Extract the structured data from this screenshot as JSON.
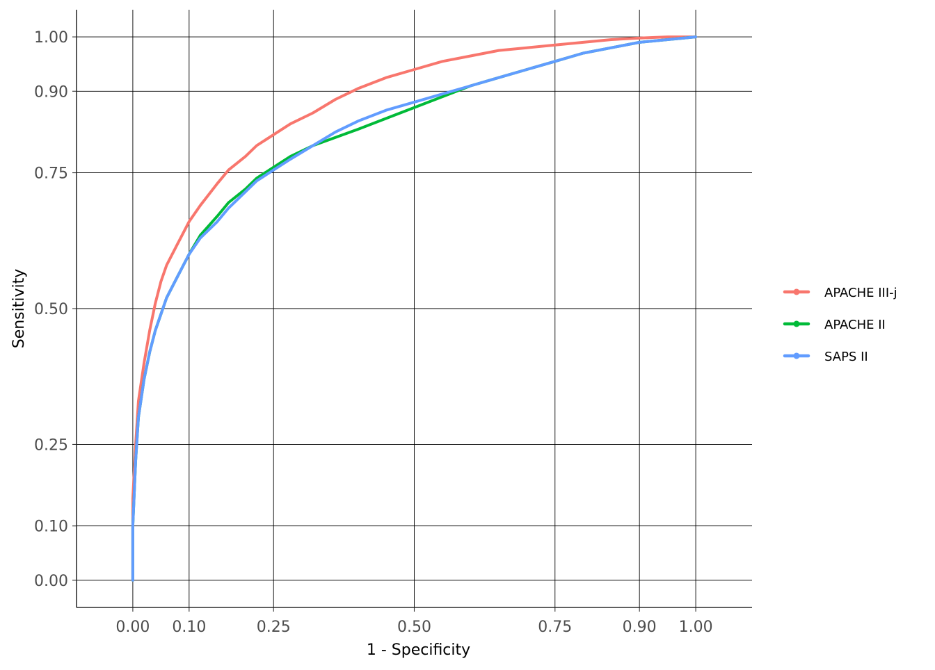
{
  "chart_data": {
    "type": "line",
    "title": "",
    "xlabel": "1 - Specificity",
    "ylabel": "Sensitivity",
    "xlim": [
      -0.1,
      1.1
    ],
    "ylim": [
      -0.05,
      1.05
    ],
    "xticks": [
      0.0,
      0.1,
      0.25,
      0.5,
      0.75,
      0.9,
      1.0
    ],
    "xtick_labels": [
      "0.00",
      "0.10",
      "0.25",
      "0.50",
      "0.75",
      "0.90",
      "1.00"
    ],
    "yticks": [
      0.0,
      0.1,
      0.25,
      0.5,
      0.75,
      0.9,
      1.0
    ],
    "ytick_labels": [
      "0.00",
      "0.10",
      "0.25",
      "0.50",
      "0.75",
      "0.90",
      "1.00"
    ],
    "grid": true,
    "legend_position": "right",
    "series": [
      {
        "name": "APACHE III-j",
        "color": "#F8766D",
        "x": [
          0.0,
          0.0,
          0.005,
          0.01,
          0.02,
          0.03,
          0.04,
          0.05,
          0.06,
          0.08,
          0.1,
          0.12,
          0.15,
          0.17,
          0.2,
          0.22,
          0.25,
          0.28,
          0.32,
          0.36,
          0.4,
          0.45,
          0.5,
          0.55,
          0.6,
          0.65,
          0.7,
          0.75,
          0.8,
          0.85,
          0.9,
          0.95,
          1.0
        ],
        "y": [
          0.0,
          0.15,
          0.25,
          0.33,
          0.4,
          0.46,
          0.51,
          0.55,
          0.58,
          0.62,
          0.66,
          0.69,
          0.73,
          0.755,
          0.78,
          0.8,
          0.82,
          0.84,
          0.86,
          0.885,
          0.905,
          0.925,
          0.94,
          0.955,
          0.965,
          0.975,
          0.98,
          0.985,
          0.99,
          0.995,
          0.998,
          1.0,
          1.0
        ]
      },
      {
        "name": "APACHE II",
        "color": "#00BA38",
        "x": [
          0.0,
          0.0,
          0.005,
          0.01,
          0.02,
          0.03,
          0.04,
          0.05,
          0.06,
          0.08,
          0.1,
          0.12,
          0.15,
          0.17,
          0.2,
          0.22,
          0.25,
          0.28,
          0.32,
          0.36,
          0.4,
          0.45,
          0.5,
          0.55,
          0.6,
          0.65,
          0.7,
          0.75,
          0.8,
          0.85,
          0.9,
          0.95,
          1.0
        ],
        "y": [
          0.0,
          0.1,
          0.22,
          0.3,
          0.37,
          0.42,
          0.46,
          0.49,
          0.52,
          0.56,
          0.6,
          0.635,
          0.67,
          0.695,
          0.72,
          0.74,
          0.76,
          0.78,
          0.8,
          0.815,
          0.83,
          0.85,
          0.87,
          0.89,
          0.91,
          0.925,
          0.94,
          0.955,
          0.97,
          0.98,
          0.99,
          0.995,
          1.0
        ]
      },
      {
        "name": "SAPS II",
        "color": "#619CFF",
        "x": [
          0.0,
          0.0,
          0.005,
          0.01,
          0.02,
          0.03,
          0.04,
          0.05,
          0.06,
          0.08,
          0.1,
          0.12,
          0.15,
          0.17,
          0.2,
          0.22,
          0.25,
          0.28,
          0.32,
          0.36,
          0.4,
          0.45,
          0.5,
          0.55,
          0.6,
          0.65,
          0.7,
          0.75,
          0.8,
          0.85,
          0.9,
          0.95,
          1.0
        ],
        "y": [
          0.0,
          0.1,
          0.22,
          0.3,
          0.37,
          0.42,
          0.46,
          0.49,
          0.52,
          0.56,
          0.6,
          0.63,
          0.66,
          0.685,
          0.715,
          0.735,
          0.755,
          0.775,
          0.8,
          0.825,
          0.845,
          0.865,
          0.88,
          0.895,
          0.91,
          0.925,
          0.94,
          0.955,
          0.97,
          0.98,
          0.99,
          0.995,
          1.0
        ]
      }
    ]
  }
}
